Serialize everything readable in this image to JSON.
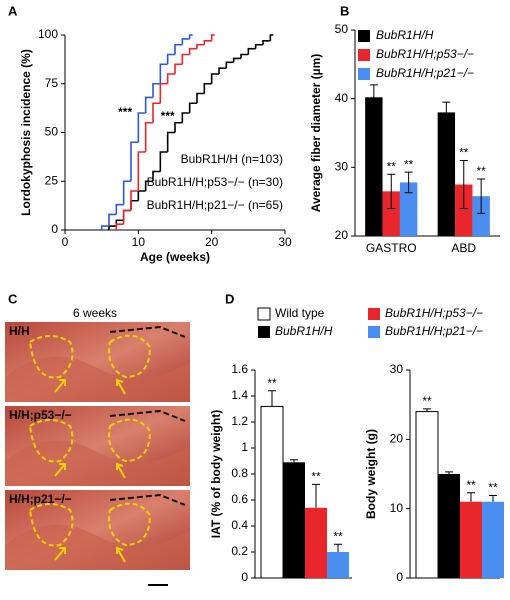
{
  "chart_data": [
    {
      "type": "step",
      "panel": "A",
      "xlabel": "Age (weeks)",
      "ylabel": "Lordokyphosis incidence (%)",
      "xlim": [
        0,
        30
      ],
      "xticks": [
        0,
        10,
        20,
        30
      ],
      "ylim": [
        0,
        100
      ],
      "yticks": [
        0,
        25,
        50,
        75,
        100
      ],
      "series": [
        {
          "name": "BubR1H/H (n=103)",
          "color": "#000000",
          "x": [
            6,
            7,
            8,
            9,
            10,
            11,
            12,
            13,
            14,
            15,
            16,
            17,
            18,
            19,
            20,
            21,
            22,
            23,
            24,
            25,
            26,
            27,
            28
          ],
          "values": [
            2,
            5,
            10,
            15,
            20,
            25,
            30,
            40,
            50,
            55,
            60,
            65,
            70,
            75,
            80,
            83,
            86,
            88,
            90,
            93,
            95,
            97,
            100
          ]
        },
        {
          "name": "BubR1H/H;p53−/− (n=30)",
          "color": "#e8262b",
          "x": [
            7,
            8,
            9,
            10,
            11,
            12,
            13,
            14,
            15,
            16,
            17,
            18,
            19,
            20
          ],
          "values": [
            3,
            10,
            20,
            40,
            55,
            65,
            75,
            80,
            85,
            90,
            93,
            95,
            97,
            100
          ]
        },
        {
          "name": "BubR1H/H;p21−/− (n=65)",
          "color": "#2f56e0",
          "x": [
            5,
            6,
            7,
            8,
            9,
            10,
            11,
            12,
            13,
            14,
            15,
            16,
            17
          ],
          "values": [
            2,
            8,
            13,
            25,
            45,
            60,
            68,
            75,
            85,
            90,
            95,
            98,
            100
          ]
        }
      ],
      "annotations": [
        {
          "text": "***",
          "color": "#2f56e0"
        },
        {
          "text": "***",
          "color": "#e8262b"
        }
      ]
    },
    {
      "type": "bar",
      "panel": "B",
      "ylabel": "Average fiber diameter (µm)",
      "error_bars": "both",
      "categories": [
        "GASTRO",
        "ABD"
      ],
      "ylim": [
        20,
        50
      ],
      "yticks": [
        20,
        30,
        40,
        50
      ],
      "series": [
        {
          "name": "BubR1H/H",
          "color": "#000000",
          "values": [
            40.2,
            38
          ],
          "errors": [
            1.8,
            1.5
          ]
        },
        {
          "name": "BubR1H/H;p53−/−",
          "color": "#e8262b",
          "values": [
            26.5,
            27.5
          ],
          "errors": [
            2.5,
            3.5
          ],
          "sig": [
            "**",
            "**"
          ]
        },
        {
          "name": "BubR1H/H;p21−/−",
          "color": "#4a8ff0",
          "values": [
            27.8,
            25.8
          ],
          "errors": [
            1.5,
            2.5
          ],
          "sig": [
            "**",
            "**"
          ]
        }
      ]
    },
    {
      "type": "bar",
      "panel": "D",
      "ylabel": "IAT (% of body weight)",
      "error_bars": "up",
      "ylim": [
        0,
        1.6
      ],
      "yticks": [
        0,
        0.2,
        0.4,
        0.6,
        0.8,
        1,
        1.2,
        1.4,
        1.6
      ],
      "series": [
        {
          "name": "Wild type",
          "color": "#ffffff",
          "values": [
            1.32
          ],
          "errors": [
            0.12
          ],
          "sig": [
            "**"
          ]
        },
        {
          "name": "BubR1H/H",
          "color": "#000000",
          "values": [
            0.89
          ],
          "errors": [
            0.02
          ]
        },
        {
          "name": "BubR1H/H;p53−/−",
          "color": "#e8262b",
          "values": [
            0.54
          ],
          "errors": [
            0.18
          ],
          "sig": [
            "**"
          ]
        },
        {
          "name": "BubR1H/H;p21−/−",
          "color": "#4a8ff0",
          "values": [
            0.2
          ],
          "errors": [
            0.06
          ],
          "sig": [
            "**"
          ]
        }
      ]
    },
    {
      "type": "bar",
      "ylabel": "Body weight (g)",
      "error_bars": "up",
      "ylim": [
        0,
        30
      ],
      "yticks": [
        0,
        10,
        20,
        30
      ],
      "series": [
        {
          "color": "#ffffff",
          "values": [
            24
          ],
          "errors": [
            0.4
          ],
          "sig": [
            "**"
          ]
        },
        {
          "color": "#000000",
          "values": [
            15
          ],
          "errors": [
            0.3
          ]
        },
        {
          "color": "#e8262b",
          "values": [
            11
          ],
          "errors": [
            1.3
          ],
          "sig": [
            "**"
          ]
        },
        {
          "color": "#4a8ff0",
          "values": [
            11
          ],
          "errors": [
            0.9
          ],
          "sig": [
            "**"
          ]
        }
      ]
    }
  ],
  "panel_c": {
    "panel": "C",
    "title": "6 weeks",
    "images": [
      "H/H",
      "H/H;p53−/−",
      "H/H;p21−/−"
    ]
  }
}
